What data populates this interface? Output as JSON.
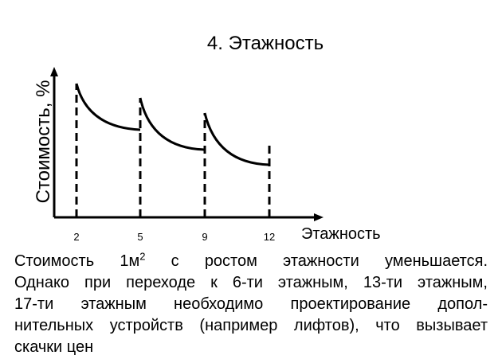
{
  "title": "4. Этажность",
  "chart": {
    "y_label": "Стоимость, %",
    "x_label": "Этажность",
    "x_labels": [
      "2",
      "5",
      "9",
      "12"
    ]
  },
  "text": {
    "line_1": [
      "Стоимость 1м",
      "2",
      " с ростом этажности уменьшается."
    ],
    "lines": [
      "Однако при переходе к 6-ти этажным, 13-ти этажным,",
      "17-ти этажным необходимо проектирование допол-",
      "нительных устройств (например лифтов), что вызывает",
      "скачки цен"
    ]
  }
}
